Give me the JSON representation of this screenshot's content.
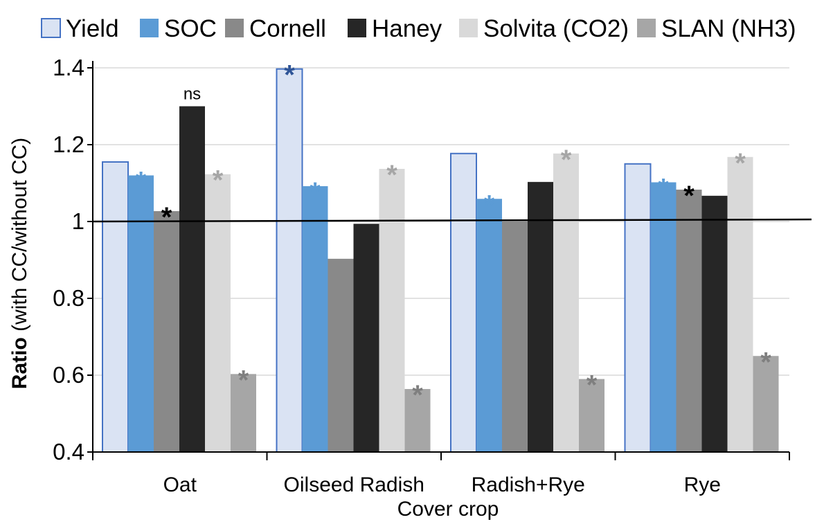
{
  "chart_data": {
    "type": "bar",
    "title": "",
    "xlabel": "Cover crop",
    "ylabel_bold": "Ratio",
    "ylabel_rest": " (with CC/without CC)",
    "ylim": [
      0.4,
      1.4
    ],
    "yticks": [
      "0.4",
      "0.6",
      "0.8",
      "1",
      "1.2",
      "1.4"
    ],
    "ytick_values": [
      0.4,
      0.6,
      0.8,
      1.0,
      1.2,
      1.4
    ],
    "grid": true,
    "legend_position": "top",
    "reference_line": 1.0,
    "categories": [
      "Oat",
      "Oilseed Radish",
      "Radish+Rye",
      "Rye"
    ],
    "series": [
      {
        "name": "Yield",
        "color": "#dae3f3",
        "stroke": "#4472c4",
        "values": [
          1.155,
          1.397,
          1.177,
          1.15
        ]
      },
      {
        "name": "SOC",
        "color": "#5b9bd5",
        "stroke": "none",
        "values": [
          1.12,
          1.092,
          1.059,
          1.102
        ]
      },
      {
        "name": "Cornell",
        "color": "#898989",
        "stroke": "none",
        "values": [
          1.027,
          0.903,
          1.0,
          1.083
        ]
      },
      {
        "name": "Haney",
        "color": "#262626",
        "stroke": "none",
        "values": [
          1.3,
          0.994,
          1.103,
          1.067
        ]
      },
      {
        "name": "Solvita (CO2)",
        "color": "#d9d9d9",
        "stroke": "none",
        "values": [
          1.123,
          1.137,
          1.177,
          1.168
        ]
      },
      {
        "name": "SLAN (NH3)",
        "color": "#a6a6a6",
        "stroke": "none",
        "values": [
          0.603,
          0.564,
          0.59,
          0.65
        ]
      }
    ],
    "annotations": [
      {
        "category": 0,
        "series": 1,
        "text": "*",
        "color": "#5b9bd5"
      },
      {
        "category": 0,
        "series": 2,
        "text": "*",
        "color": "#000000"
      },
      {
        "category": 0,
        "series": 3,
        "text": "ns",
        "color": "#000000"
      },
      {
        "category": 0,
        "series": 4,
        "text": "*",
        "color": "#a6a6a6"
      },
      {
        "category": 0,
        "series": 5,
        "text": "*",
        "color": "#7f7f7f"
      },
      {
        "category": 1,
        "series": 0,
        "text": "*",
        "color": "#2f5597"
      },
      {
        "category": 1,
        "series": 1,
        "text": "*",
        "color": "#5b9bd5"
      },
      {
        "category": 1,
        "series": 4,
        "text": "*",
        "color": "#a6a6a6"
      },
      {
        "category": 1,
        "series": 5,
        "text": "*",
        "color": "#7f7f7f"
      },
      {
        "category": 2,
        "series": 1,
        "text": "*",
        "color": "#5b9bd5"
      },
      {
        "category": 2,
        "series": 4,
        "text": "*",
        "color": "#a6a6a6"
      },
      {
        "category": 2,
        "series": 5,
        "text": "*",
        "color": "#7f7f7f"
      },
      {
        "category": 3,
        "series": 1,
        "text": "*",
        "color": "#5b9bd5"
      },
      {
        "category": 3,
        "series": 2,
        "text": "*",
        "color": "#000000"
      },
      {
        "category": 3,
        "series": 4,
        "text": "*",
        "color": "#a6a6a6"
      },
      {
        "category": 3,
        "series": 5,
        "text": "*",
        "color": "#7f7f7f"
      }
    ]
  }
}
